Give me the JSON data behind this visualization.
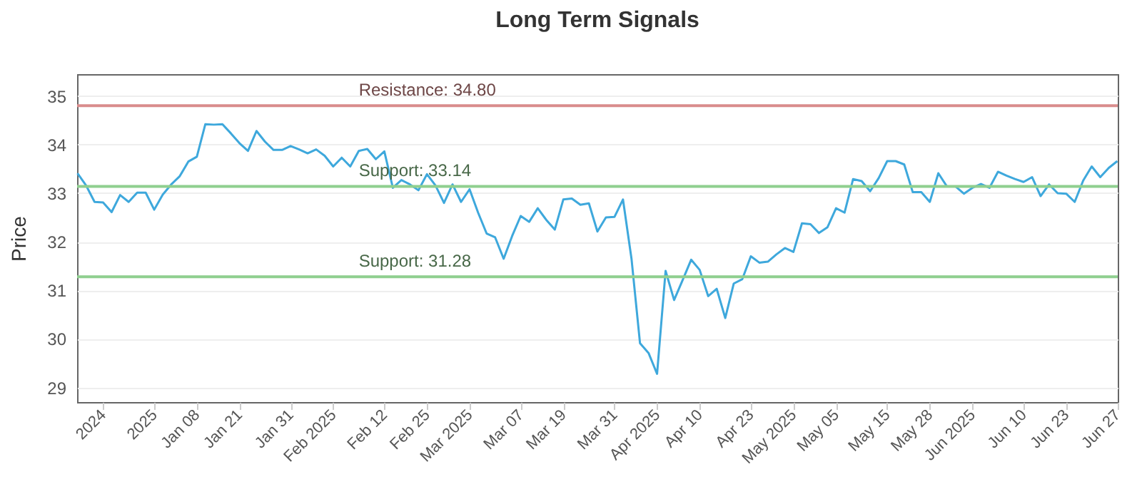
{
  "chart_data": {
    "type": "line",
    "title": "Long Term Signals",
    "ylabel": "Price",
    "categories": [
      null,
      null,
      null,
      "2024",
      null,
      null,
      null,
      null,
      null,
      "2025",
      null,
      null,
      null,
      null,
      "Jan 08",
      null,
      null,
      null,
      null,
      "Jan 21",
      null,
      null,
      null,
      null,
      null,
      "Jan 31",
      null,
      null,
      null,
      null,
      "Feb 2025",
      null,
      null,
      null,
      null,
      null,
      "Feb 12",
      null,
      null,
      null,
      null,
      "Feb 25",
      null,
      null,
      null,
      null,
      "Mar 2025",
      null,
      null,
      null,
      null,
      null,
      "Mar 07",
      null,
      null,
      null,
      null,
      "Mar 19",
      null,
      null,
      null,
      null,
      null,
      "Mar 31",
      null,
      null,
      null,
      null,
      "Apr 2025",
      null,
      null,
      null,
      null,
      "Apr 10",
      null,
      null,
      null,
      null,
      null,
      "Apr 23",
      null,
      null,
      null,
      null,
      "May 2025",
      null,
      null,
      null,
      null,
      "May 05",
      null,
      null,
      null,
      null,
      null,
      "May 15",
      null,
      null,
      null,
      null,
      "May 28",
      null,
      null,
      null,
      null,
      "Jun 2025",
      null,
      null,
      null,
      null,
      null,
      "Jun 10",
      null,
      null,
      null,
      null,
      "Jun 23",
      null,
      null,
      null,
      null,
      null,
      "Jun 27"
    ],
    "series": [
      {
        "color": "#3ea8dc",
        "values": [
          33.41,
          33.16,
          32.82,
          32.81,
          32.61,
          32.96,
          32.82,
          33.01,
          33.01,
          32.66,
          32.97,
          33.18,
          33.35,
          33.65,
          33.75,
          34.42,
          34.41,
          34.42,
          34.23,
          34.03,
          33.87,
          34.28,
          34.06,
          33.89,
          33.89,
          33.97,
          33.9,
          33.82,
          33.9,
          33.77,
          33.55,
          33.73,
          33.55,
          33.87,
          33.91,
          33.7,
          33.86,
          33.11,
          33.27,
          33.18,
          33.06,
          33.39,
          33.16,
          32.8,
          33.18,
          32.82,
          33.08,
          32.6,
          32.17,
          32.09,
          31.65,
          32.12,
          32.53,
          32.41,
          32.69,
          32.45,
          32.25,
          32.87,
          32.89,
          32.76,
          32.79,
          32.21,
          32.5,
          32.51,
          32.87,
          31.65,
          29.91,
          29.71,
          29.28,
          31.4,
          30.8,
          31.21,
          31.63,
          31.42,
          30.88,
          31.03,
          30.43,
          31.14,
          31.23,
          31.7,
          31.57,
          31.59,
          31.74,
          31.87,
          31.79,
          32.38,
          32.36,
          32.18,
          32.3,
          32.69,
          32.6,
          33.29,
          33.25,
          33.04,
          33.31,
          33.66,
          33.66,
          33.59,
          33.02,
          33.02,
          32.82,
          33.41,
          33.14,
          33.14,
          32.99,
          33.11,
          33.19,
          33.11,
          33.44,
          33.36,
          33.29,
          33.23,
          33.33,
          32.94,
          33.18,
          33.0,
          32.99,
          32.82,
          33.26,
          33.55,
          33.33,
          33.52,
          33.66
        ]
      }
    ],
    "ylim": [
      28.7,
      35.45
    ],
    "yticks": [
      29,
      30,
      31,
      32,
      33,
      34,
      35
    ],
    "grid": "y",
    "marker": "none",
    "line_style": "solid",
    "ref_lines": [
      {
        "axis": "y",
        "value": 34.8,
        "label": "Resistance: 34.80",
        "color": "#d98c8c"
      },
      {
        "axis": "y",
        "value": 33.14,
        "label": "Support: 33.14",
        "color": "#8fcf8f"
      },
      {
        "axis": "y",
        "value": 31.28,
        "label": "Support: 31.28",
        "color": "#8fcf8f"
      }
    ]
  }
}
